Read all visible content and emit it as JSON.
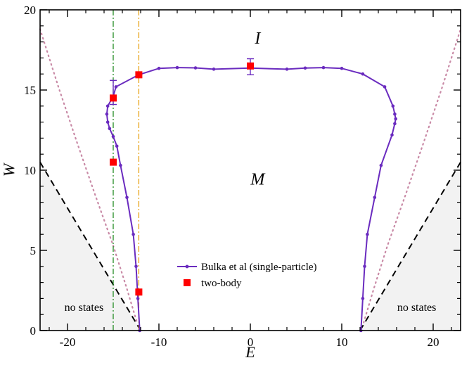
{
  "chart_data": {
    "type": "scatter",
    "xlabel": "E",
    "ylabel": "W",
    "xlim": [
      -23,
      23
    ],
    "ylim": [
      0,
      20
    ],
    "x_ticks": [
      -20,
      -10,
      0,
      10,
      20
    ],
    "y_ticks": [
      0,
      5,
      10,
      15,
      20
    ],
    "x_minor_step": 2,
    "y_minor_step": 1,
    "grid": false,
    "legend_position": "center-bottom",
    "colors": {
      "line_series": "#6a2bbf",
      "marker_series": "#ff0000",
      "dashed_boundary": "#000000",
      "dotted_curve": "#c98aa6",
      "green_vline": "#228b22",
      "orange_vline": "#e8a317",
      "no_states_fill": "#f2f2f2"
    },
    "series": [
      {
        "name": "Bulka et al (single-particle)",
        "kind": "line-with-points",
        "points": [
          [
            -12.1,
            0
          ],
          [
            -12.3,
            2
          ],
          [
            -12.5,
            4
          ],
          [
            -12.8,
            6
          ],
          [
            -13.5,
            8.3
          ],
          [
            -14.2,
            10.3
          ],
          [
            -14.6,
            11.5
          ],
          [
            -15.0,
            12.1
          ],
          [
            -15.4,
            12.6
          ],
          [
            -15.6,
            13.0
          ],
          [
            -15.7,
            13.5
          ],
          [
            -15.6,
            14.0
          ],
          [
            -15.0,
            14.6
          ],
          [
            -14.7,
            15.2
          ],
          [
            -12.2,
            15.95
          ],
          [
            -10.0,
            16.35
          ],
          [
            -8.0,
            16.4
          ],
          [
            -6.0,
            16.38
          ],
          [
            -4.0,
            16.3
          ],
          [
            0.0,
            16.37
          ],
          [
            4.0,
            16.3
          ],
          [
            6.0,
            16.37
          ],
          [
            8.0,
            16.4
          ],
          [
            10.0,
            16.35
          ],
          [
            12.3,
            16.0
          ],
          [
            14.7,
            15.2
          ],
          [
            15.6,
            14.0
          ],
          [
            15.8,
            13.5
          ],
          [
            15.9,
            13.2
          ],
          [
            15.8,
            12.9
          ],
          [
            15.5,
            12.2
          ],
          [
            14.3,
            10.3
          ],
          [
            13.6,
            8.3
          ],
          [
            12.8,
            6
          ],
          [
            12.5,
            4
          ],
          [
            12.3,
            2
          ],
          [
            12.1,
            0
          ]
        ]
      },
      {
        "name": "two-body",
        "kind": "markers",
        "points": [
          [
            -12.2,
            2.4
          ],
          [
            -15.0,
            10.5
          ],
          [
            -15.0,
            14.5
          ],
          [
            -12.2,
            15.95
          ],
          [
            0.0,
            16.5
          ]
        ],
        "error_bars": [
          {
            "x": -15.0,
            "ylow": 14.1,
            "yhigh": 15.6
          },
          {
            "x": 0.0,
            "ylow": 15.95,
            "yhigh": 16.95
          }
        ]
      }
    ],
    "reference_lines": {
      "dashed_left": [
        [
          -23,
          10.5
        ],
        [
          -12.0,
          0
        ]
      ],
      "dashed_right": [
        [
          12.0,
          0
        ],
        [
          23,
          10.5
        ]
      ],
      "dotted_left": [
        [
          -23,
          18.8
        ],
        [
          -21,
          15.2
        ],
        [
          -19,
          11.8
        ],
        [
          -17,
          8.5
        ],
        [
          -15,
          5.3
        ],
        [
          -13.5,
          2.6
        ],
        [
          -12.4,
          0.5
        ]
      ],
      "dotted_right": [
        [
          12.4,
          0.5
        ],
        [
          13.5,
          2.6
        ],
        [
          15,
          5.3
        ],
        [
          17,
          8.5
        ],
        [
          19,
          11.8
        ],
        [
          21,
          15.2
        ],
        [
          23,
          18.8
        ]
      ],
      "green_vline_x": -15.0,
      "orange_vline_x": -12.2,
      "shaded_left_vertices": [
        [
          -23,
          0
        ],
        [
          -23,
          10.5
        ],
        [
          -12.0,
          0
        ]
      ],
      "shaded_right_vertices": [
        [
          12.0,
          0
        ],
        [
          23,
          10.5
        ],
        [
          23,
          0
        ]
      ]
    },
    "annotations": {
      "region_insulator": {
        "text": "I",
        "x": 0.8,
        "y": 17.9
      },
      "region_metal": {
        "text": "M",
        "x": 0.8,
        "y": 9.1
      },
      "no_states_left": {
        "text": "no states",
        "x": -18.2,
        "y": 1.5
      },
      "no_states_right": {
        "text": "no states",
        "x": 18.2,
        "y": 1.5
      }
    }
  }
}
